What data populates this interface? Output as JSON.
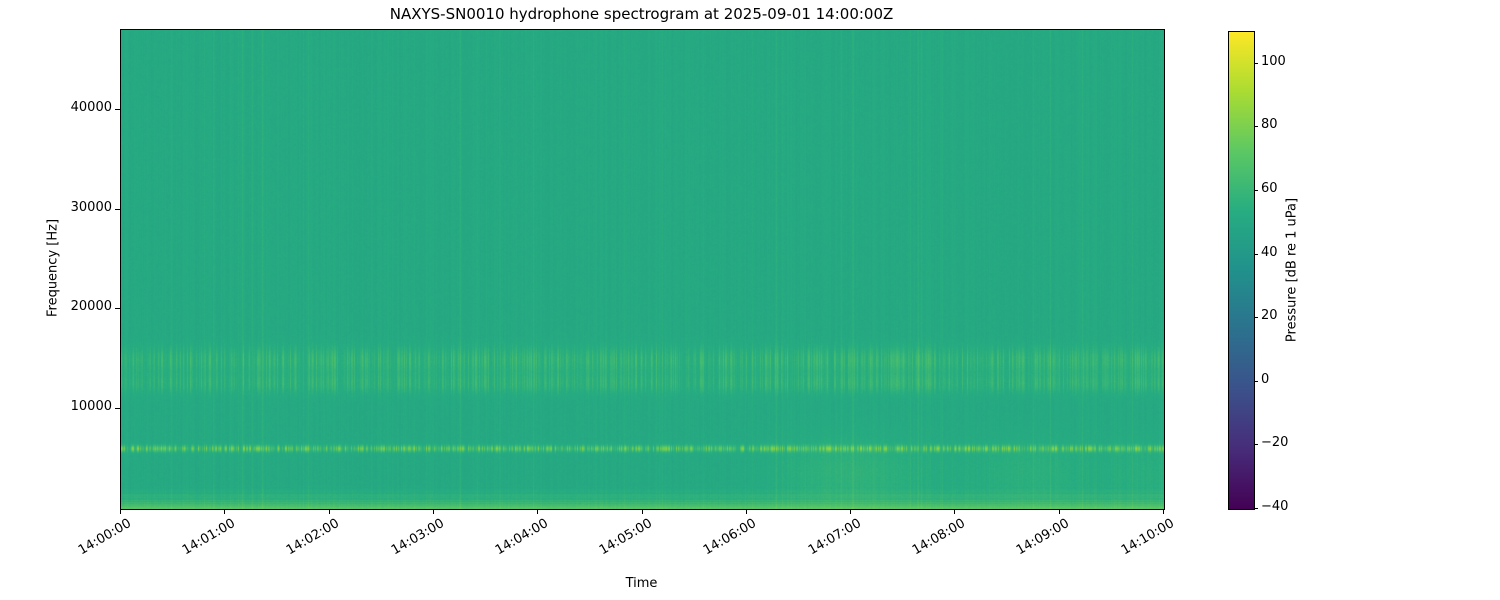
{
  "chart_data": {
    "type": "heatmap",
    "title": "NAXYS-SN0010 hydrophone spectrogram at 2025-09-01 14:00:00Z",
    "xlabel": "Time",
    "ylabel": "Frequency [Hz]",
    "x_ticks": [
      "14:00:00",
      "14:01:00",
      "14:02:00",
      "14:03:00",
      "14:04:00",
      "14:05:00",
      "14:06:00",
      "14:07:00",
      "14:08:00",
      "14:09:00",
      "14:10:00"
    ],
    "x_range_seconds": [
      0,
      600
    ],
    "y_ticks": [
      10000,
      20000,
      30000,
      40000
    ],
    "y_range_hz": [
      0,
      48000
    ],
    "grid": false,
    "legend": null,
    "colormap": "viridis",
    "colorbar": {
      "label": "Pressure [dB re 1 uPa]",
      "ticks": [
        100,
        80,
        60,
        40,
        20,
        0,
        -20,
        -40
      ],
      "range_db": [
        -40,
        110
      ]
    },
    "background_level_db": 51,
    "features": [
      {
        "name": "broadband-low-frequency-band",
        "freq_hz": [
          0,
          2400
        ],
        "peak_level_db": 80,
        "description": "bright striated broadband band along the bottom of the spectrogram"
      },
      {
        "name": "tonal-band-6khz",
        "freq_hz": [
          5600,
          6600
        ],
        "peak_level_db": 88,
        "description": "intermittent bright tonal dashes near 6 kHz across the whole record"
      },
      {
        "name": "transient-band-12-16khz",
        "freq_hz": [
          11500,
          16500
        ],
        "peak_level_db": 68,
        "description": "dense vertical transient striping between roughly 12 and 16 kHz"
      },
      {
        "name": "full-band-transients",
        "freq_hz": [
          0,
          48000
        ],
        "peak_level_db": 60,
        "description": "occasional faint full-bandwidth vertical stripes"
      },
      {
        "name": "low-mid-haze",
        "freq_hz": [
          1000,
          8000
        ],
        "peak_level_db": 60,
        "description": "slightly elevated diffuse levels below 8 kHz around 14:06:30-14:08:30 and near the end of the record"
      }
    ]
  },
  "colors": {
    "background": "#ffffff",
    "axis": "#000000",
    "viridis_stops": [
      [
        0.0,
        "#440154"
      ],
      [
        0.125,
        "#472c7a"
      ],
      [
        0.25,
        "#3b518b"
      ],
      [
        0.375,
        "#2c718e"
      ],
      [
        0.5,
        "#21918c"
      ],
      [
        0.625,
        "#27ad81"
      ],
      [
        0.75,
        "#5cc863"
      ],
      [
        0.875,
        "#aadc32"
      ],
      [
        1.0,
        "#fde725"
      ]
    ]
  }
}
